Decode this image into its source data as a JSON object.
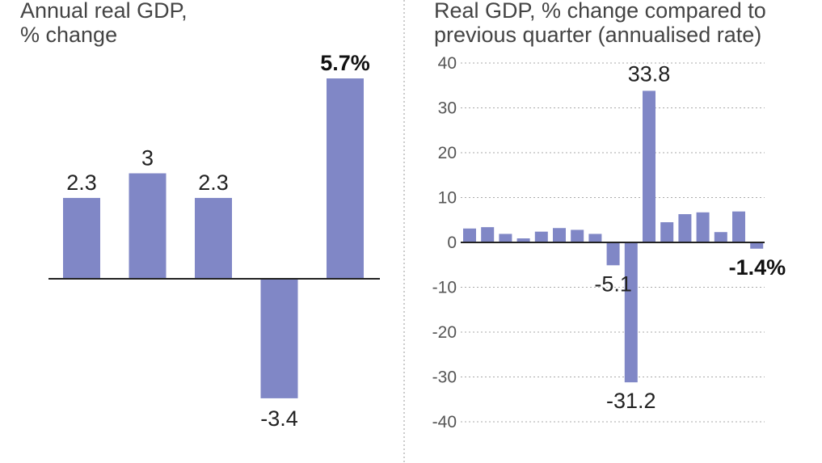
{
  "chart_data": [
    {
      "type": "bar",
      "title_lines": [
        "Annual real GDP,",
        "% change"
      ],
      "values": [
        2.3,
        3,
        2.3,
        -3.4,
        5.7
      ],
      "data_labels": [
        "2.3",
        "3",
        "2.3",
        "-3.4",
        "5.7%"
      ],
      "highlight_index": 4,
      "ylim": [
        -3.4,
        5.7
      ],
      "grid": false,
      "bar_color": "#8087c6"
    },
    {
      "type": "bar",
      "title_lines": [
        "Real GDP, % change compared to",
        "previous quarter (annualised rate)"
      ],
      "values": [
        3.1,
        3.4,
        1.9,
        0.9,
        2.4,
        3.2,
        2.8,
        1.9,
        -5.1,
        -31.2,
        33.8,
        4.5,
        6.3,
        6.7,
        2.3,
        6.9,
        -1.4
      ],
      "data_labels": [
        {
          "index": 8,
          "text": "-5.1",
          "bold": false
        },
        {
          "index": 9,
          "text": "-31.2",
          "bold": false
        },
        {
          "index": 10,
          "text": "33.8",
          "bold": false
        },
        {
          "index": 16,
          "text": "-1.4%",
          "bold": true
        }
      ],
      "ylim": [
        -40,
        40
      ],
      "yticks": [
        40,
        30,
        20,
        10,
        0,
        -10,
        -20,
        -30,
        -40
      ],
      "ytick_labels": [
        "40",
        "30",
        "20",
        "10",
        "0",
        "-10",
        "-20",
        "-30",
        "-40"
      ],
      "grid": true,
      "bar_color": "#8087c6"
    }
  ]
}
